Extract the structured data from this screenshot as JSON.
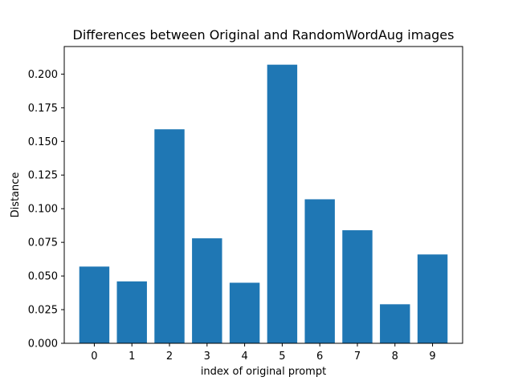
{
  "chart_data": {
    "type": "bar",
    "title": "Differences between Original and RandomWordAug images",
    "xlabel": "index of original prompt",
    "ylabel": "Distance",
    "categories": [
      "0",
      "1",
      "2",
      "3",
      "4",
      "5",
      "6",
      "7",
      "8",
      "9"
    ],
    "values": [
      0.057,
      0.046,
      0.159,
      0.078,
      0.045,
      0.207,
      0.107,
      0.084,
      0.029,
      0.066
    ],
    "ylim": [
      0,
      0.2205
    ],
    "xlim": [
      -0.8,
      9.8
    ],
    "yticks": [
      "0.000",
      "0.025",
      "0.050",
      "0.075",
      "0.100",
      "0.125",
      "0.150",
      "0.175",
      "0.200"
    ],
    "grid": false,
    "bar_color": "#1f77b4"
  }
}
